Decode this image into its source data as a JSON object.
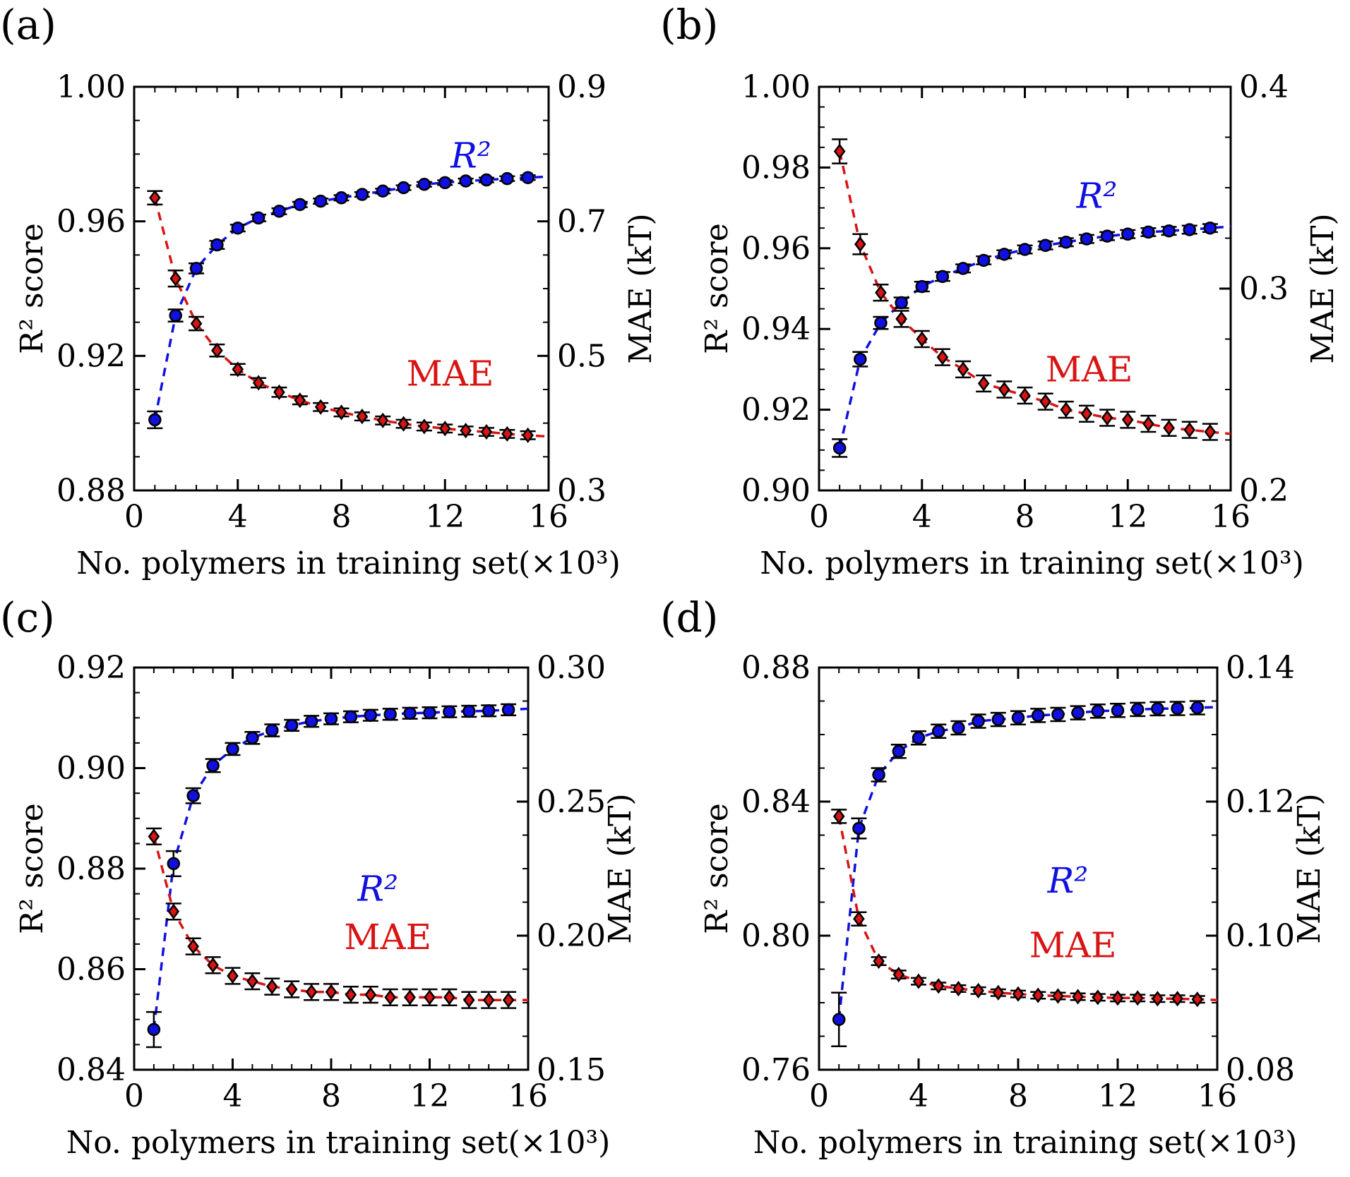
{
  "colors": {
    "r2": "#1010e0",
    "mae": "#d81414",
    "axis": "#000000"
  },
  "chart_data": [
    {
      "panel_label": "(a)",
      "type": "scatter",
      "xlabel": "No. polymers in training set(×10³)",
      "ylabel_left": "R² score",
      "ylabel_right": "MAE (kT)",
      "xlim": [
        0,
        16
      ],
      "xticks": [
        "0",
        "4",
        "8",
        "12",
        "16"
      ],
      "ylim_left": [
        0.88,
        1.0
      ],
      "yticks_left": [
        "0.88",
        "0.92",
        "0.96",
        "1.00"
      ],
      "ylim_right": [
        0.3,
        0.9
      ],
      "yticks_right": [
        "0.3",
        "0.5",
        "0.7",
        "0.9"
      ],
      "x": [
        0.8,
        1.6,
        2.4,
        3.2,
        4.0,
        4.8,
        5.6,
        6.4,
        7.2,
        8.0,
        8.8,
        9.6,
        10.4,
        11.2,
        12.0,
        12.8,
        13.6,
        14.4,
        15.2
      ],
      "series": [
        {
          "name": "R²",
          "axis": "left",
          "marker": "circle",
          "annotation": "R²",
          "values": [
            0.901,
            0.932,
            0.946,
            0.953,
            0.958,
            0.961,
            0.963,
            0.965,
            0.966,
            0.967,
            0.968,
            0.969,
            0.97,
            0.971,
            0.9715,
            0.972,
            0.9723,
            0.9727,
            0.973
          ],
          "errors": [
            0.0025,
            0.0018,
            0.0015,
            0.0012,
            0.001,
            0.001,
            0.0009,
            0.0008,
            0.0008,
            0.0008,
            0.0007,
            0.0007,
            0.0007,
            0.0007,
            0.0007,
            0.0007,
            0.0007,
            0.0007,
            0.0007
          ]
        },
        {
          "name": "MAE",
          "axis": "right",
          "marker": "diamond",
          "annotation": "MAE",
          "values": [
            0.735,
            0.615,
            0.548,
            0.508,
            0.48,
            0.46,
            0.446,
            0.434,
            0.424,
            0.416,
            0.41,
            0.404,
            0.399,
            0.395,
            0.392,
            0.389,
            0.387,
            0.384,
            0.382
          ],
          "errors": [
            0.01,
            0.012,
            0.01,
            0.009,
            0.008,
            0.007,
            0.007,
            0.006,
            0.006,
            0.006,
            0.006,
            0.006,
            0.006,
            0.006,
            0.006,
            0.006,
            0.006,
            0.006,
            0.006
          ]
        }
      ]
    },
    {
      "panel_label": "(b)",
      "type": "scatter",
      "xlabel": "No. polymers in training set(×10³)",
      "ylabel_left": "R² score",
      "ylabel_right": "MAE (kT)",
      "xlim": [
        0,
        16
      ],
      "xticks": [
        "0",
        "4",
        "8",
        "12",
        "16"
      ],
      "ylim_left": [
        0.9,
        1.0
      ],
      "yticks_left": [
        "0.90",
        "0.92",
        "0.94",
        "0.96",
        "0.98",
        "1.00"
      ],
      "ylim_right": [
        0.2,
        0.4
      ],
      "yticks_right": [
        "0.2",
        "0.3",
        "0.4"
      ],
      "x": [
        0.8,
        1.6,
        2.4,
        3.2,
        4.0,
        4.8,
        5.6,
        6.4,
        7.2,
        8.0,
        8.8,
        9.6,
        10.4,
        11.2,
        12.0,
        12.8,
        13.6,
        14.4,
        15.2
      ],
      "series": [
        {
          "name": "R²",
          "axis": "left",
          "marker": "circle",
          "annotation": "R²",
          "values": [
            0.9105,
            0.9325,
            0.9415,
            0.9465,
            0.9505,
            0.953,
            0.955,
            0.957,
            0.9585,
            0.9597,
            0.9607,
            0.9615,
            0.9623,
            0.963,
            0.9635,
            0.964,
            0.9643,
            0.9646,
            0.965
          ],
          "errors": [
            0.0022,
            0.0018,
            0.0015,
            0.0013,
            0.0012,
            0.0011,
            0.001,
            0.001,
            0.001,
            0.001,
            0.001,
            0.001,
            0.001,
            0.001,
            0.001,
            0.001,
            0.001,
            0.001,
            0.001
          ]
        },
        {
          "name": "MAE",
          "axis": "right",
          "marker": "diamond",
          "annotation": "MAE",
          "values": [
            0.368,
            0.322,
            0.298,
            0.285,
            0.275,
            0.266,
            0.26,
            0.253,
            0.25,
            0.247,
            0.244,
            0.24,
            0.238,
            0.236,
            0.235,
            0.233,
            0.231,
            0.23,
            0.229
          ],
          "errors": [
            0.006,
            0.005,
            0.004,
            0.004,
            0.004,
            0.004,
            0.004,
            0.004,
            0.004,
            0.004,
            0.004,
            0.004,
            0.004,
            0.004,
            0.004,
            0.004,
            0.004,
            0.004,
            0.004
          ]
        }
      ]
    },
    {
      "panel_label": "(c)",
      "type": "scatter",
      "xlabel": "No. polymers in training set(×10³)",
      "ylabel_left": "R² score",
      "ylabel_right": "MAE (kT)",
      "xlim": [
        0,
        16
      ],
      "xticks": [
        "0",
        "4",
        "8",
        "12",
        "16"
      ],
      "ylim_left": [
        0.84,
        0.92
      ],
      "yticks_left": [
        "0.84",
        "0.86",
        "0.88",
        "0.90",
        "0.92"
      ],
      "ylim_right": [
        0.15,
        0.3
      ],
      "yticks_right": [
        "0.15",
        "0.20",
        "0.25",
        "0.30"
      ],
      "x": [
        0.8,
        1.6,
        2.4,
        3.2,
        4.0,
        4.8,
        5.6,
        6.4,
        7.2,
        8.0,
        8.8,
        9.6,
        10.4,
        11.2,
        12.0,
        12.8,
        13.6,
        14.4,
        15.2
      ],
      "series": [
        {
          "name": "R²",
          "axis": "left",
          "marker": "circle",
          "annotation": "R²",
          "values": [
            0.848,
            0.881,
            0.8945,
            0.9005,
            0.9038,
            0.906,
            0.9075,
            0.9085,
            0.9093,
            0.9098,
            0.9102,
            0.9105,
            0.9107,
            0.9109,
            0.911,
            0.9112,
            0.9113,
            0.9114,
            0.9116
          ],
          "errors": [
            0.0035,
            0.0025,
            0.0015,
            0.0013,
            0.0012,
            0.0012,
            0.0012,
            0.0011,
            0.0011,
            0.0011,
            0.0011,
            0.0011,
            0.0011,
            0.0011,
            0.0011,
            0.0011,
            0.0011,
            0.0011,
            0.0011
          ]
        },
        {
          "name": "MAE",
          "axis": "right",
          "marker": "diamond",
          "annotation": "MAE",
          "values": [
            0.237,
            0.209,
            0.196,
            0.189,
            0.185,
            0.183,
            0.181,
            0.18,
            0.179,
            0.179,
            0.178,
            0.178,
            0.177,
            0.177,
            0.177,
            0.177,
            0.176,
            0.176,
            0.176
          ],
          "errors": [
            0.003,
            0.003,
            0.003,
            0.003,
            0.003,
            0.003,
            0.003,
            0.003,
            0.003,
            0.003,
            0.003,
            0.003,
            0.003,
            0.003,
            0.003,
            0.003,
            0.003,
            0.003,
            0.003
          ]
        }
      ]
    },
    {
      "panel_label": "(d)",
      "type": "scatter",
      "xlabel": "No. polymers in training set(×10³)",
      "ylabel_left": "R² score",
      "ylabel_right": "MAE (kT)",
      "xlim": [
        0,
        16
      ],
      "xticks": [
        "0",
        "4",
        "8",
        "12",
        "16"
      ],
      "ylim_left": [
        0.76,
        0.88
      ],
      "yticks_left": [
        "0.76",
        "0.80",
        "0.84",
        "0.88"
      ],
      "ylim_right": [
        0.08,
        0.14
      ],
      "yticks_right": [
        "0.08",
        "0.10",
        "0.12",
        "0.14"
      ],
      "x": [
        0.8,
        1.6,
        2.4,
        3.2,
        4.0,
        4.8,
        5.6,
        6.4,
        7.2,
        8.0,
        8.8,
        9.6,
        10.4,
        11.2,
        12.0,
        12.8,
        13.6,
        14.4,
        15.2
      ],
      "series": [
        {
          "name": "R²",
          "axis": "left",
          "marker": "circle",
          "annotation": "R²",
          "values": [
            0.775,
            0.832,
            0.848,
            0.855,
            0.859,
            0.861,
            0.862,
            0.864,
            0.8645,
            0.865,
            0.8657,
            0.866,
            0.8665,
            0.867,
            0.8672,
            0.8675,
            0.8677,
            0.8678,
            0.868
          ],
          "errors": [
            0.008,
            0.003,
            0.002,
            0.002,
            0.002,
            0.002,
            0.002,
            0.002,
            0.002,
            0.002,
            0.002,
            0.002,
            0.002,
            0.002,
            0.002,
            0.002,
            0.002,
            0.002,
            0.002
          ]
        },
        {
          "name": "MAE",
          "axis": "right",
          "marker": "diamond",
          "annotation": "MAE",
          "values": [
            0.1178,
            0.1025,
            0.0962,
            0.0942,
            0.0932,
            0.0925,
            0.0921,
            0.0918,
            0.0915,
            0.0913,
            0.0911,
            0.091,
            0.0909,
            0.0908,
            0.0907,
            0.0907,
            0.0906,
            0.0906,
            0.0905
          ],
          "errors": [
            0.001,
            0.001,
            0.0006,
            0.0006,
            0.0005,
            0.0005,
            0.0005,
            0.0005,
            0.0005,
            0.0005,
            0.0005,
            0.0005,
            0.0005,
            0.0005,
            0.0005,
            0.0005,
            0.0005,
            0.0005,
            0.0005
          ]
        }
      ]
    }
  ]
}
